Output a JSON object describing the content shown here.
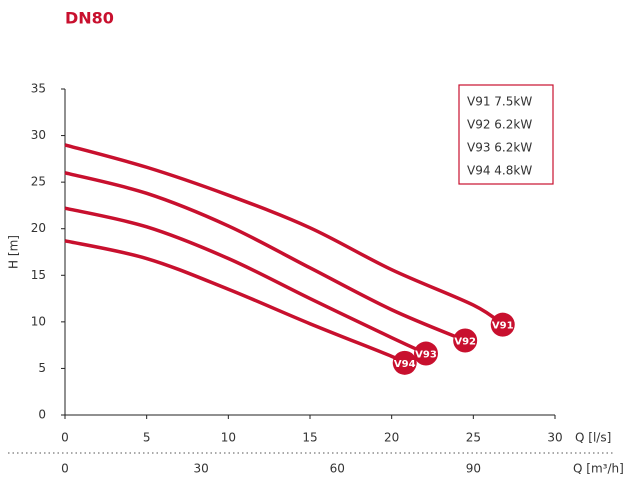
{
  "chart_data": {
    "type": "line",
    "title": "DN80",
    "ylabel": "H [m]",
    "xlabel": "Q [l/s]",
    "x2label": "Q [m³/h]",
    "xlim": [
      0,
      30
    ],
    "xticks": [
      0,
      5,
      10,
      15,
      20,
      25,
      30
    ],
    "x2lim": [
      0,
      108
    ],
    "x2ticks": [
      0,
      30,
      60,
      90
    ],
    "ylim": [
      0,
      35
    ],
    "yticks": [
      0,
      5,
      10,
      15,
      20,
      25,
      30,
      35
    ],
    "legend": "top-right",
    "series": [
      {
        "name": "V91 7.5kW",
        "label": "V91",
        "color": "#c8102e",
        "x": [
          0,
          5,
          10,
          15,
          20,
          25,
          26.8
        ],
        "values": [
          29,
          26.6,
          23.6,
          20.1,
          15.6,
          11.8,
          9.7
        ]
      },
      {
        "name": "V92 6.2kW",
        "label": "V92",
        "color": "#c8102e",
        "x": [
          0,
          5,
          10,
          15,
          20,
          24.5
        ],
        "values": [
          26,
          23.8,
          20.3,
          15.8,
          11.3,
          8
        ]
      },
      {
        "name": "V93 6.2kW",
        "label": "V93",
        "color": "#c8102e",
        "x": [
          0,
          5,
          10,
          15,
          20,
          22.1
        ],
        "values": [
          22.2,
          20.2,
          16.8,
          12.5,
          8.3,
          6.6
        ]
      },
      {
        "name": "V94 4.8kW",
        "label": "V94",
        "color": "#c8102e",
        "x": [
          0,
          5,
          10,
          15,
          20,
          20.8
        ],
        "values": [
          18.7,
          16.8,
          13.5,
          9.8,
          6.3,
          5.6
        ]
      }
    ]
  }
}
